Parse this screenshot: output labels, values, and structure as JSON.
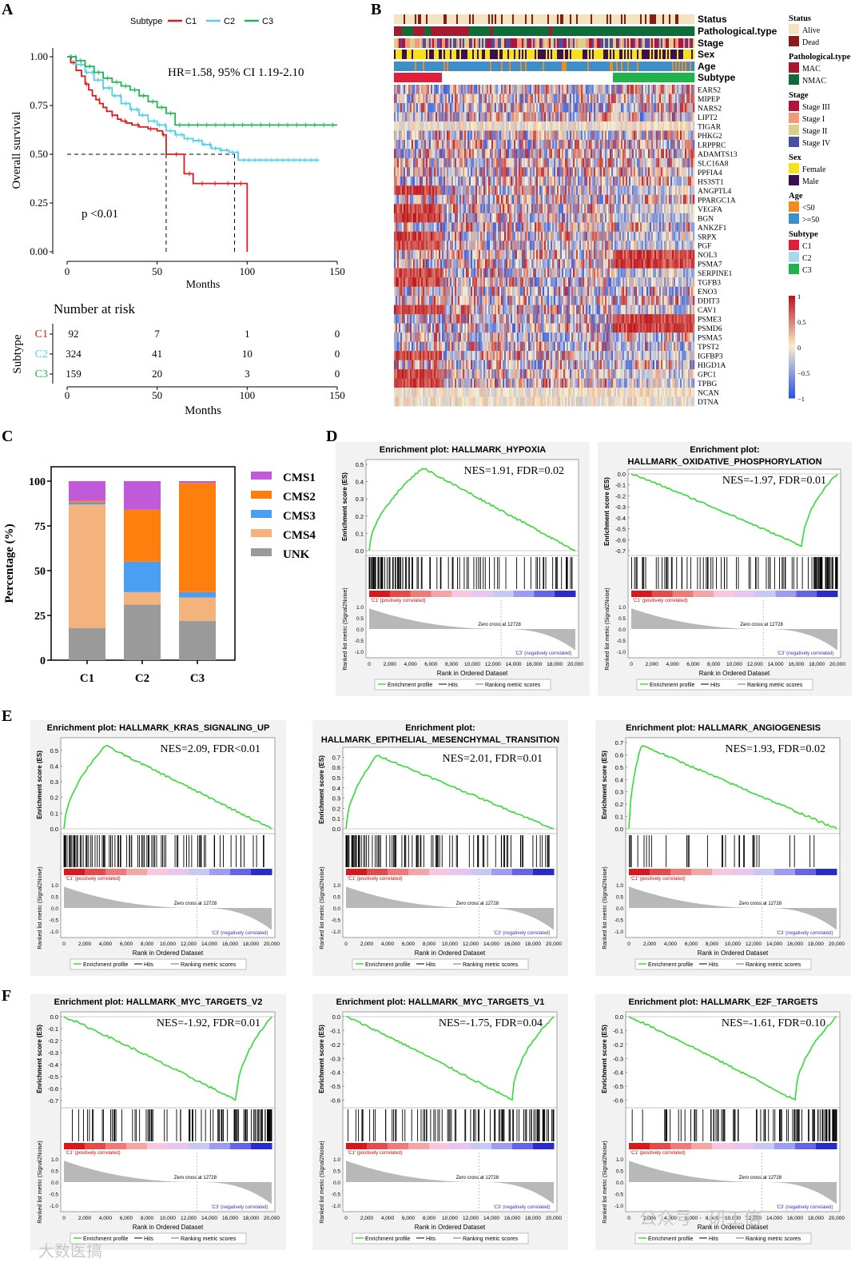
{
  "panel_letters": [
    "A",
    "B",
    "C",
    "D",
    "E",
    "F"
  ],
  "chart_data": [
    {
      "id": "A",
      "type": "line",
      "title": "",
      "xlabel": "Months",
      "ylabel": "Overall survival",
      "xlim": [
        0,
        150
      ],
      "ylim": [
        0,
        1
      ],
      "xticks": [
        "0",
        "50",
        "100",
        "150"
      ],
      "yticks": [
        "0.00",
        "0.25",
        "0.50",
        "0.75",
        "1.00"
      ],
      "legend_title": "Subtype",
      "legend": [
        "C1",
        "C2",
        "C3"
      ],
      "colors": [
        "#e31a1c",
        "#4fd1ee",
        "#1db954"
      ],
      "annotation_hr": "HR=1.58, 95% CI 1.19-2.10",
      "annotation_p": "p <0.01",
      "median_lines": [
        [
          55,
          0.5
        ],
        [
          93,
          0.5
        ]
      ],
      "series": [
        {
          "name": "C1",
          "x": [
            0,
            2,
            5,
            8,
            10,
            12,
            14,
            16,
            18,
            20,
            22,
            25,
            28,
            30,
            33,
            36,
            40,
            45,
            50,
            53,
            55,
            60,
            65,
            70,
            80,
            90,
            100,
            100
          ],
          "y": [
            1,
            0.97,
            0.93,
            0.9,
            0.86,
            0.83,
            0.8,
            0.78,
            0.76,
            0.74,
            0.72,
            0.7,
            0.68,
            0.67,
            0.66,
            0.65,
            0.64,
            0.63,
            0.62,
            0.6,
            0.5,
            0.5,
            0.4,
            0.35,
            0.35,
            0.35,
            0.35,
            0
          ]
        },
        {
          "name": "C2",
          "x": [
            0,
            5,
            10,
            15,
            20,
            25,
            30,
            35,
            40,
            45,
            50,
            55,
            60,
            65,
            70,
            75,
            80,
            85,
            90,
            95,
            100,
            110,
            120,
            130,
            140
          ],
          "y": [
            1,
            0.96,
            0.92,
            0.88,
            0.84,
            0.8,
            0.76,
            0.73,
            0.7,
            0.67,
            0.65,
            0.62,
            0.6,
            0.58,
            0.57,
            0.55,
            0.53,
            0.52,
            0.51,
            0.47,
            0.47,
            0.47,
            0.47,
            0.47,
            0.47
          ]
        },
        {
          "name": "C3",
          "x": [
            0,
            5,
            10,
            15,
            20,
            25,
            30,
            35,
            40,
            45,
            50,
            55,
            60,
            70,
            80,
            100,
            120,
            150
          ],
          "y": [
            1,
            0.98,
            0.95,
            0.92,
            0.89,
            0.87,
            0.85,
            0.83,
            0.8,
            0.77,
            0.74,
            0.71,
            0.65,
            0.65,
            0.65,
            0.65,
            0.65,
            0.65
          ]
        }
      ]
    },
    {
      "id": "A-risk",
      "type": "table",
      "title": "Number at risk",
      "xlabel": "Months",
      "ylabel": "Subtype",
      "xticks": [
        "0",
        "50",
        "100",
        "150"
      ],
      "rows": [
        {
          "name": "C1",
          "color": "#e31a1c",
          "values": [
            "92",
            "7",
            "1",
            "0"
          ]
        },
        {
          "name": "C2",
          "color": "#4fd1ee",
          "values": [
            "324",
            "41",
            "10",
            "0"
          ]
        },
        {
          "name": "C3",
          "color": "#1db954",
          "values": [
            "159",
            "20",
            "3",
            "0"
          ]
        }
      ]
    },
    {
      "id": "B",
      "type": "heatmap",
      "annotation_tracks": [
        "Status",
        "Pathological.type",
        "Stage",
        "Sex",
        "Age",
        "Subtype"
      ],
      "genes": [
        "EARS2",
        "MIPEP",
        "NARS2",
        "LIPT2",
        "TIGAR",
        "PHKG2",
        "LRPPRC",
        "ADAMTS13",
        "SLC16A8",
        "PPFIA4",
        "HS3ST1",
        "ANGPTL4",
        "PPARGC1A",
        "VEGFA",
        "BGN",
        "ANKZF1",
        "SRPX",
        "PGF",
        "NOL3",
        "PSMA7",
        "SERPINE1",
        "TGFB3",
        "ENO3",
        "DDIT3",
        "CAV1",
        "PSME3",
        "PSMD6",
        "PSMA5",
        "TPST2",
        "IGFBP3",
        "HIGD1A",
        "GPC1",
        "TPBG",
        "NCAN",
        "DTNA"
      ],
      "legend": [
        {
          "title": "Status",
          "items": [
            {
              "label": "Alive",
              "color": "#f3e3c2"
            },
            {
              "label": "Dead",
              "color": "#8b1a1a"
            }
          ]
        },
        {
          "title": "Pathological.type",
          "items": [
            {
              "label": "MAC",
              "color": "#a8182e"
            },
            {
              "label": "NMAC",
              "color": "#0e6b3a"
            }
          ]
        },
        {
          "title": "Stage",
          "items": [
            {
              "label": "Stage III",
              "color": "#b0143c"
            },
            {
              "label": "Stage I",
              "color": "#f09a7a"
            },
            {
              "label": "Stage II",
              "color": "#d9d08c"
            },
            {
              "label": "Stage IV",
              "color": "#4b4fa3"
            }
          ]
        },
        {
          "title": "Sex",
          "items": [
            {
              "label": "Female",
              "color": "#f5e21a"
            },
            {
              "label": "Male",
              "color": "#3a0f4e"
            }
          ]
        },
        {
          "title": "Age",
          "items": [
            {
              "label": "<50",
              "color": "#f08c1e"
            },
            {
              "label": ">=50",
              "color": "#3d8fc9"
            }
          ]
        },
        {
          "title": "Subtype",
          "items": [
            {
              "label": "C1",
              "color": "#e0203a"
            },
            {
              "label": "C2",
              "color": "#a8d8ee"
            },
            {
              "label": "C3",
              "color": "#22b24c"
            }
          ]
        }
      ],
      "colorbar_ticks": [
        "1",
        "0.5",
        "0",
        "−0.5",
        "−1"
      ],
      "colorbar_range": [
        -1,
        1
      ]
    },
    {
      "id": "C",
      "type": "bar",
      "stacked": true,
      "ylabel": "Percentage (%)",
      "categories": [
        "C1",
        "C2",
        "C3"
      ],
      "ylim": [
        0,
        100
      ],
      "yticks": [
        "0",
        "25",
        "50",
        "75",
        "100"
      ],
      "series": [
        {
          "name": "UNK",
          "color": "#9a9a9a",
          "values": [
            18,
            31,
            22
          ]
        },
        {
          "name": "CMS4",
          "color": "#f4b27c",
          "values": [
            69,
            7,
            13
          ]
        },
        {
          "name": "CMS3",
          "color": "#4a9ff5",
          "values": [
            1,
            17,
            3
          ]
        },
        {
          "name": "CMS2",
          "color": "#ff7f0e",
          "values": [
            1,
            29,
            61
          ]
        },
        {
          "name": "CMS1",
          "color": "#c05ad8",
          "values": [
            11,
            16,
            1
          ]
        }
      ],
      "legend_order": [
        "CMS1",
        "CMS2",
        "CMS3",
        "CMS4",
        "UNK"
      ]
    }
  ],
  "gsea_common": {
    "es_ylabel": "Enrichment score (ES)",
    "metric_ylabel": "Ranked list metric (Signal2Noise)",
    "xlabel": "Rank in Ordered Dataset",
    "xticks": [
      "0",
      "2,000",
      "4,000",
      "6,000",
      "8,000",
      "10,000",
      "12,000",
      "14,000",
      "16,000",
      "18,000",
      "20,000"
    ],
    "pos_label": "'C1' (positively correlated)",
    "neg_label": "'C3' (negatively correlated)",
    "zero_cross": "Zero cross at 12728",
    "metric_ticks": [
      "1.0",
      "0.5",
      "0.0",
      "-0.5",
      "-1.0"
    ],
    "legend": [
      "Enrichment profile",
      "Hits",
      "Ranking metric scores"
    ]
  },
  "gsea": [
    {
      "panel": "D",
      "title1": "Enrichment plot: HALLMARK_HYPOXIA",
      "title2": "",
      "nes": "NES=1.91, FDR=0.02",
      "yticks": [
        "0.5",
        "0.4",
        "0.3",
        "0.2",
        "0.1",
        "0.0"
      ],
      "ymin": 0,
      "ymax": 0.5,
      "peak": 0.48,
      "peakx": 0.26,
      "hitdensity": "top"
    },
    {
      "panel": "D",
      "title1": "Enrichment plot:",
      "title2": "HALLMARK_OXIDATIVE_PHOSPHORYLATION",
      "nes": "NES=-1.97, FDR=0.01",
      "yticks": [
        "0.0",
        "-0.1",
        "-0.2",
        "-0.3",
        "-0.4",
        "-0.5",
        "-0.6",
        "-0.7"
      ],
      "ymin": -0.7,
      "ymax": 0,
      "peak": -0.66,
      "peakx": 0.83,
      "hitdensity": "bottom"
    },
    {
      "panel": "E",
      "title1": "Enrichment plot: HALLMARK_KRAS_SIGNALING_UP",
      "title2": "",
      "nes": "NES=2.09, FDR<0.01",
      "yticks": [
        "0.5",
        "0.4",
        "0.3",
        "0.2",
        "0.1",
        "0.0"
      ],
      "ymin": 0,
      "ymax": 0.55,
      "peak": 0.53,
      "peakx": 0.2,
      "hitdensity": "top"
    },
    {
      "panel": "E",
      "title1": "Enrichment plot:",
      "title2": "HALLMARK_EPITHELIAL_MESENCHYMAL_TRANSITION",
      "nes": "NES=2.01, FDR=0.01",
      "yticks": [
        "0.7",
        "0.6",
        "0.5",
        "0.4",
        "0.3",
        "0.2",
        "0.1",
        "0.0"
      ],
      "ymin": 0,
      "ymax": 0.75,
      "peak": 0.72,
      "peakx": 0.15,
      "hitdensity": "top"
    },
    {
      "panel": "E",
      "title1": "Enrichment plot: HALLMARK_ANGIOGENESIS",
      "title2": "",
      "nes": "NES=1.93, FDR=0.02",
      "yticks": [
        "0.7",
        "0.6",
        "0.5",
        "0.4",
        "0.3",
        "0.2",
        "0.1",
        "0.0"
      ],
      "ymin": 0,
      "ymax": 0.7,
      "peak": 0.68,
      "peakx": 0.06,
      "hitdensity": "sparse"
    },
    {
      "panel": "F",
      "title1": "Enrichment plot: HALLMARK_MYC_TARGETS_V2",
      "title2": "",
      "nes": "NES=-1.92, FDR=0.01",
      "yticks": [
        "0.0",
        "-0.1",
        "-0.2",
        "-0.3",
        "-0.4",
        "-0.5",
        "-0.6",
        "-0.7"
      ],
      "ymin": -0.72,
      "ymax": 0,
      "peak": -0.7,
      "peakx": 0.83,
      "hitdensity": "bottom"
    },
    {
      "panel": "F",
      "title1": "Enrichment plot: HALLMARK_MYC_TARGETS_V1",
      "title2": "",
      "nes": "NES=-1.75, FDR=0.04",
      "yticks": [
        "0.0",
        "-0.1",
        "-0.2",
        "-0.3",
        "-0.4",
        "-0.5",
        "-0.6"
      ],
      "ymin": -0.62,
      "ymax": 0,
      "peak": -0.6,
      "peakx": 0.8,
      "hitdensity": "bottom"
    },
    {
      "panel": "F",
      "title1": "Enrichment plot: HALLMARK_E2F_TARGETS",
      "title2": "",
      "nes": "NES=-1.61, FDR=0.10",
      "yticks": [
        "0.0",
        "-0.1",
        "-0.2",
        "-0.3",
        "-0.4",
        "-0.5",
        "-0.6"
      ],
      "ymin": -0.62,
      "ymax": 0,
      "peak": -0.6,
      "peakx": 0.8,
      "hitdensity": "bottom"
    }
  ],
  "watermark": {
    "left": "大数医搞",
    "right": "公众号 · 研工信"
  }
}
